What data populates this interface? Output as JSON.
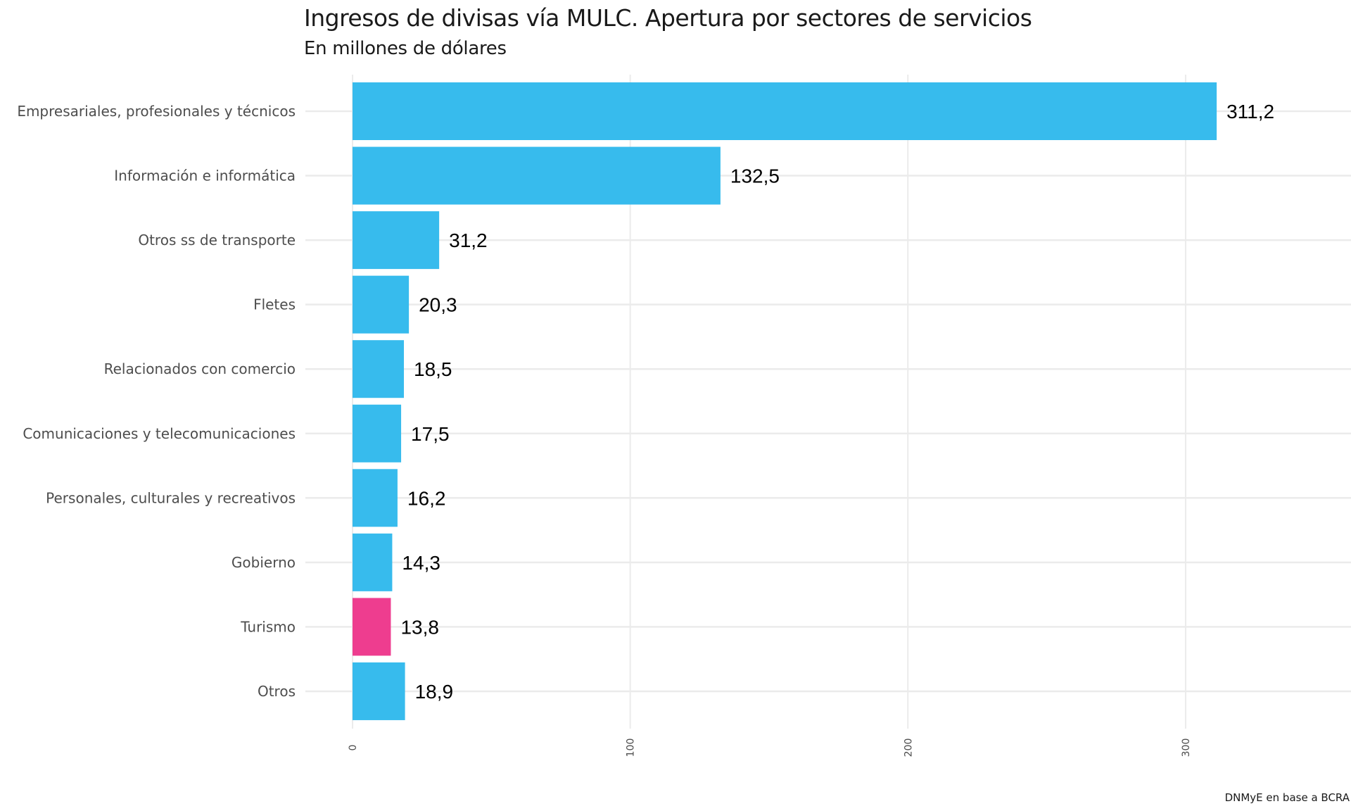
{
  "chart_data": {
    "type": "bar",
    "orientation": "horizontal",
    "title": "Ingresos de divisas vía MULC. Apertura por sectores de servicios",
    "subtitle": "En millones de dólares",
    "caption": "DNMyE en base a BCRA",
    "categories": [
      "Empresariales, profesionales y técnicos",
      "Información e informática",
      "Otros ss de transporte",
      "Fletes",
      "Relacionados con comercio",
      "Comunicaciones  y telecomunicaciones",
      "Personales, culturales y recreativos",
      "Gobierno",
      "Turismo",
      "Otros"
    ],
    "values": [
      311.2,
      132.5,
      31.2,
      20.3,
      18.5,
      17.5,
      16.2,
      14.3,
      13.8,
      18.9
    ],
    "value_labels": [
      "311,2",
      "132,5",
      "31,2",
      "20,3",
      "18,5",
      "17,5",
      "16,2",
      "14,3",
      "13,8",
      "18,9"
    ],
    "colors": [
      "#37bbed",
      "#37bbed",
      "#37bbed",
      "#37bbed",
      "#37bbed",
      "#37bbed",
      "#37bbed",
      "#37bbed",
      "#ee3d8f",
      "#37bbed"
    ],
    "xlim": [
      0,
      360
    ],
    "x_ticks": [
      0,
      100,
      200,
      300
    ],
    "x_tick_labels": [
      "0",
      "100",
      "200",
      "300"
    ],
    "grid": true,
    "grid_color": "#ebebeb",
    "legend": "none"
  }
}
